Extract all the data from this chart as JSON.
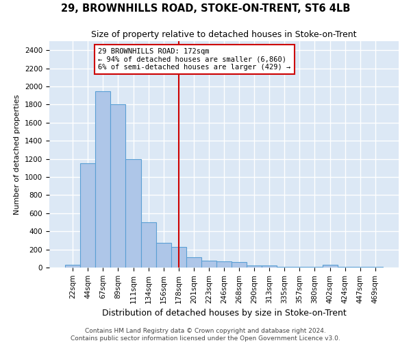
{
  "title": "29, BROWNHILLS ROAD, STOKE-ON-TRENT, ST6 4LB",
  "subtitle": "Size of property relative to detached houses in Stoke-on-Trent",
  "xlabel": "Distribution of detached houses by size in Stoke-on-Trent",
  "ylabel": "Number of detached properties",
  "categories": [
    "22sqm",
    "44sqm",
    "67sqm",
    "89sqm",
    "111sqm",
    "134sqm",
    "156sqm",
    "178sqm",
    "201sqm",
    "223sqm",
    "246sqm",
    "268sqm",
    "290sqm",
    "313sqm",
    "335sqm",
    "357sqm",
    "380sqm",
    "402sqm",
    "424sqm",
    "447sqm",
    "469sqm"
  ],
  "values": [
    30,
    1150,
    1950,
    1800,
    1200,
    500,
    270,
    230,
    110,
    75,
    65,
    60,
    25,
    25,
    5,
    5,
    5,
    30,
    5,
    5,
    5
  ],
  "bar_color": "#aec6e8",
  "bar_edge_color": "#5a9fd4",
  "vline_x_index": 7,
  "vline_color": "#cc0000",
  "annotation_text": "29 BROWNHILLS ROAD: 172sqm\n← 94% of detached houses are smaller (6,860)\n6% of semi-detached houses are larger (429) →",
  "annotation_box_color": "#ffffff",
  "annotation_box_edge": "#cc0000",
  "ylim": [
    0,
    2500
  ],
  "yticks": [
    0,
    200,
    400,
    600,
    800,
    1000,
    1200,
    1400,
    1600,
    1800,
    2000,
    2200,
    2400
  ],
  "background_color": "#dce8f5",
  "grid_color": "#ffffff",
  "footer_line1": "Contains HM Land Registry data © Crown copyright and database right 2024.",
  "footer_line2": "Contains public sector information licensed under the Open Government Licence v3.0.",
  "title_fontsize": 10.5,
  "subtitle_fontsize": 9,
  "footer_fontsize": 6.5,
  "ylabel_fontsize": 8,
  "xlabel_fontsize": 9,
  "tick_fontsize": 7.5,
  "annot_fontsize": 7.5
}
